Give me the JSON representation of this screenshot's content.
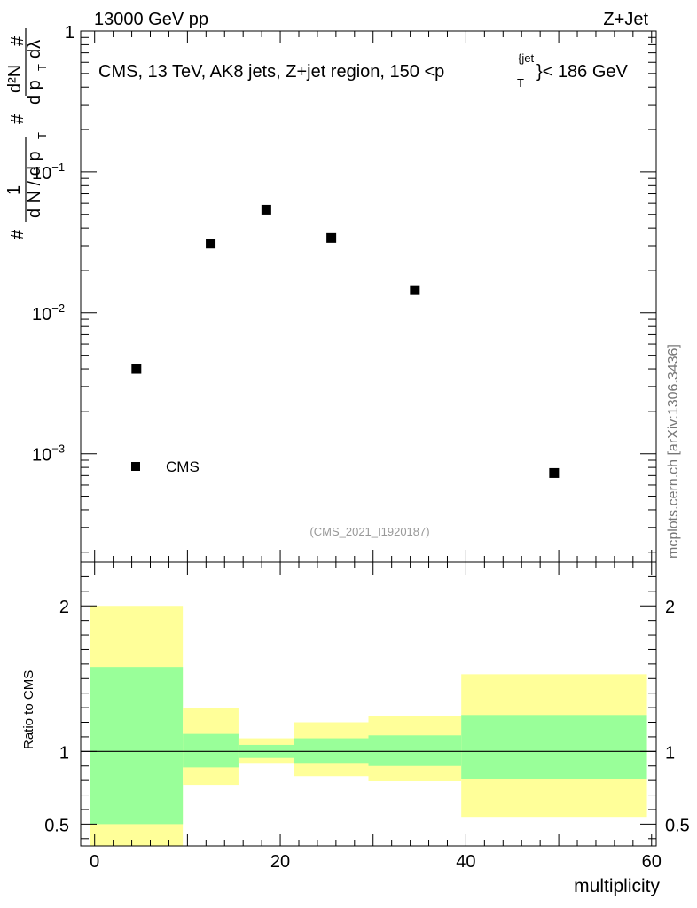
{
  "header": {
    "left": "13000 GeV pp",
    "right": "Z+Jet"
  },
  "side_label": "mcplots.cern.ch [arXiv:1306.3436]",
  "colors": {
    "band_outer": "#ffff99",
    "band_inner": "#99ff99",
    "marker": "#000000",
    "watermark": "#999999"
  },
  "chart_data": [
    {
      "type": "scatter",
      "name": "main",
      "title": "CMS, 13 TeV, AK8 jets, Z+jet region, 150 <p_T^{jet}< 186 GeV",
      "title_parts": {
        "prefix": "CMS, 13 TeV, AK8 jets, Z+jet region, 150 <p",
        "sup": "{jet",
        "sub": "T",
        "suffix": "}< 186 GeV"
      },
      "ylabel": "1/N dN/dp_T dλ",
      "ylabel_parts": {
        "hash": "#",
        "one": "1",
        "denom": "d N / d p",
        "denom_sub": "T",
        "mid_hash": "#",
        "num": "d²N",
        "num_denom": "d p",
        "num_denom_sub": "T",
        "num_denom_end": " dλ",
        "num_hash": "#"
      },
      "yscale": "log",
      "ylim": [
        0.00017,
        1
      ],
      "xlim": [
        -1.5,
        60.5
      ],
      "yticks": [
        {
          "value": 1,
          "base": "1",
          "exp": ""
        },
        {
          "value": 0.1,
          "base": "10",
          "exp": "−1"
        },
        {
          "value": 0.01,
          "base": "10",
          "exp": "−2"
        },
        {
          "value": 0.001,
          "base": "10",
          "exp": "−3"
        }
      ],
      "series": [
        {
          "name": "CMS",
          "x": [
            4.5,
            12.5,
            18.5,
            25.5,
            34.5,
            49.5
          ],
          "y": [
            0.004,
            0.031,
            0.054,
            0.034,
            0.0145,
            0.00073
          ]
        }
      ],
      "legend": {
        "label": "CMS",
        "placement": "bottom-left"
      },
      "watermark": "(CMS_2021_I1920187)"
    },
    {
      "type": "bar",
      "name": "ratio",
      "ylabel": "Ratio to CMS",
      "xlabel": "multiplicity",
      "xlim": [
        -1.5,
        60.5
      ],
      "ylim": [
        0.35,
        2.3
      ],
      "xticks": [
        0,
        20,
        40,
        60
      ],
      "yticks": [
        {
          "value": 0.5,
          "label": "0.5"
        },
        {
          "value": 1,
          "label": "1"
        },
        {
          "value": 2,
          "label": "2"
        }
      ],
      "reference": 1,
      "bins": [
        {
          "lo": -0.5,
          "hi": 9.5,
          "outer": [
            0.35,
            2.0
          ],
          "inner": [
            0.5,
            1.58
          ]
        },
        {
          "lo": 9.5,
          "hi": 15.5,
          "outer": [
            0.77,
            1.3
          ],
          "inner": [
            0.89,
            1.12
          ]
        },
        {
          "lo": 15.5,
          "hi": 21.5,
          "outer": [
            0.915,
            1.09
          ],
          "inner": [
            0.955,
            1.045
          ]
        },
        {
          "lo": 21.5,
          "hi": 29.5,
          "outer": [
            0.83,
            1.2
          ],
          "inner": [
            0.915,
            1.09
          ]
        },
        {
          "lo": 29.5,
          "hi": 39.5,
          "outer": [
            0.795,
            1.24
          ],
          "inner": [
            0.9,
            1.11
          ]
        },
        {
          "lo": 39.5,
          "hi": 59.5,
          "outer": [
            0.55,
            1.53
          ],
          "inner": [
            0.81,
            1.25
          ]
        }
      ]
    }
  ]
}
